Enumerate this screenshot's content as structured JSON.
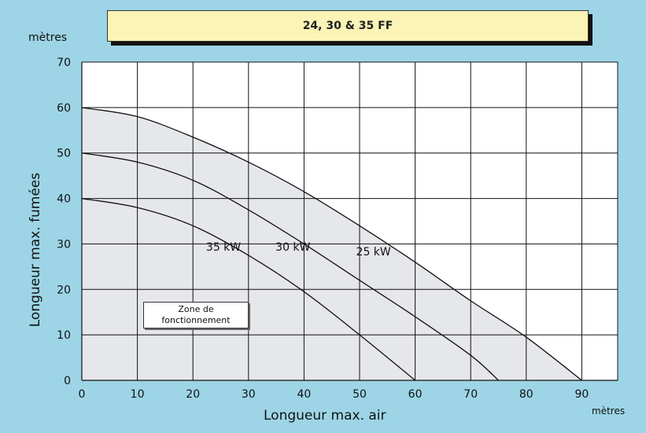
{
  "chart_data": {
    "type": "line",
    "title": "24, 30 & 35 FF",
    "xlabel": "Longueur max. air",
    "ylabel": "Longueur max. fumées",
    "x_unit": "mètres",
    "y_unit": "mètres",
    "xlim": [
      0,
      95
    ],
    "ylim": [
      0,
      70
    ],
    "x_ticks": [
      "0",
      "10",
      "20",
      "30",
      "40",
      "50",
      "60",
      "70",
      "80",
      "90"
    ],
    "y_ticks": [
      "0",
      "10",
      "20",
      "30",
      "40",
      "50",
      "60",
      "70"
    ],
    "grid": true,
    "series": [
      {
        "name": "25 kW",
        "x": [
          0,
          10,
          20,
          30,
          40,
          50,
          60,
          70,
          80,
          90
        ],
        "y": [
          60,
          58,
          53.5,
          48,
          41.5,
          34,
          26,
          17.5,
          9.5,
          0
        ],
        "label_at": [
          52.5,
          27.5
        ]
      },
      {
        "name": "30 kW",
        "x": [
          0,
          10,
          20,
          30,
          40,
          50,
          60,
          70,
          75
        ],
        "y": [
          50,
          48,
          44,
          37.5,
          30,
          22,
          14,
          5.5,
          0
        ],
        "label_at": [
          38,
          28.5
        ]
      },
      {
        "name": "35 kW",
        "x": [
          0,
          10,
          20,
          30,
          40,
          50,
          60
        ],
        "y": [
          40,
          38,
          34,
          27.5,
          19.5,
          10,
          0
        ],
        "label_at": [
          25.5,
          28.5
        ]
      }
    ],
    "shaded_region": {
      "under_series": "25 kW",
      "color": "#e6e7ea"
    },
    "annotation": {
      "line1": "Zone de",
      "line2": "fonctionnement"
    }
  },
  "colors": {
    "background": "#9dd5e6",
    "plot_fill": "#ffffff",
    "zone": "#e6e7ea",
    "lines": "#111111",
    "title_box": "#fbf4b6"
  }
}
